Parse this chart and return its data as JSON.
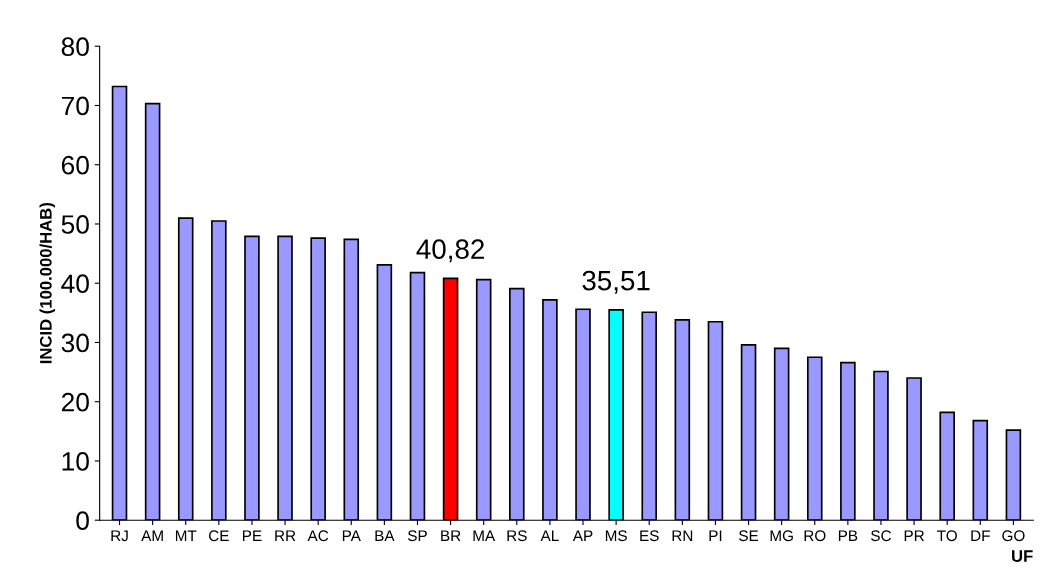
{
  "chart_data": {
    "type": "bar",
    "xlabel": "UF",
    "ylabel": "INCID (100.000/HAB)",
    "categories": [
      "RJ",
      "AM",
      "MT",
      "CE",
      "PE",
      "RR",
      "AC",
      "PA",
      "BA",
      "SP",
      "BR",
      "MA",
      "RS",
      "AL",
      "AP",
      "MS",
      "ES",
      "RN",
      "PI",
      "SE",
      "MG",
      "RO",
      "PB",
      "SC",
      "PR",
      "TO",
      "DF",
      "GO"
    ],
    "values": [
      73.2,
      70.3,
      51.0,
      50.5,
      47.9,
      47.9,
      47.6,
      47.4,
      43.1,
      41.8,
      40.82,
      40.6,
      39.1,
      37.2,
      35.6,
      35.51,
      35.1,
      33.8,
      33.5,
      29.6,
      29.0,
      27.5,
      26.6,
      25.1,
      24.0,
      18.2,
      16.8,
      15.2
    ],
    "colors": [
      "#9999ff",
      "#9999ff",
      "#9999ff",
      "#9999ff",
      "#9999ff",
      "#9999ff",
      "#9999ff",
      "#9999ff",
      "#9999ff",
      "#9999ff",
      "#ff0000",
      "#9999ff",
      "#9999ff",
      "#9999ff",
      "#9999ff",
      "#00ffff",
      "#9999ff",
      "#9999ff",
      "#9999ff",
      "#9999ff",
      "#9999ff",
      "#9999ff",
      "#9999ff",
      "#9999ff",
      "#9999ff",
      "#9999ff",
      "#9999ff",
      "#9999ff"
    ],
    "value_labels": [
      null,
      null,
      null,
      null,
      null,
      null,
      null,
      null,
      null,
      null,
      "40,82",
      null,
      null,
      null,
      null,
      "35,51",
      null,
      null,
      null,
      null,
      null,
      null,
      null,
      null,
      null,
      null,
      null,
      null
    ],
    "ylim": [
      0,
      80
    ],
    "yticks": [
      0,
      10,
      20,
      30,
      40,
      50,
      60,
      70,
      80
    ],
    "grid": false,
    "legend": false
  }
}
